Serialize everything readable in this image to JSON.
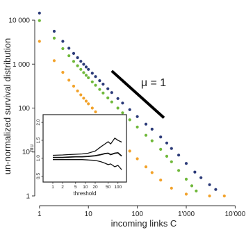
{
  "chart_data": [
    {
      "type": "scatter",
      "scale": "log-log",
      "xlabel": "incoming links C",
      "ylabel": "un-normalized survival distribution",
      "xlim": [
        0.8,
        12000
      ],
      "ylim": [
        0.6,
        20000
      ],
      "x_tick_labels": [
        "1",
        "10",
        "100",
        "1'000",
        "10'000"
      ],
      "x_ticks": [
        1,
        10,
        100,
        1000,
        10000
      ],
      "y_tick_labels": [
        "1",
        "10",
        "100",
        "1 000",
        "10 000"
      ],
      "y_ticks": [
        1,
        10,
        100,
        1000,
        10000
      ],
      "grid": false,
      "series": [
        {
          "color": "#2b3a78",
          "points": [
            [
              1,
              14500
            ],
            [
              2,
              5600
            ],
            [
              3,
              3300
            ],
            [
              4,
              2300
            ],
            [
              5,
              1750
            ],
            [
              6,
              1400
            ],
            [
              7,
              1160
            ],
            [
              8,
              990
            ],
            [
              9,
              860
            ],
            [
              10,
              760
            ],
            [
              12,
              620
            ],
            [
              14,
              520
            ],
            [
              17,
              420
            ],
            [
              20,
              350
            ],
            [
              25,
              275
            ],
            [
              30,
              225
            ],
            [
              40,
              165
            ],
            [
              50,
              130
            ],
            [
              70,
              92
            ],
            [
              100,
              64
            ],
            [
              150,
              43
            ],
            [
              200,
              33
            ],
            [
              300,
              22
            ],
            [
              400,
              16
            ],
            [
              500,
              12
            ],
            [
              700,
              8.5
            ],
            [
              1000,
              5.5
            ],
            [
              1500,
              3.5
            ],
            [
              2000,
              2.6
            ],
            [
              3000,
              1.8
            ],
            [
              4000,
              1.4
            ]
          ]
        },
        {
          "color": "#6fb83a",
          "points": [
            [
              1,
              9800
            ],
            [
              2,
              3900
            ],
            [
              3,
              2250
            ],
            [
              4,
              1550
            ],
            [
              5,
              1150
            ],
            [
              6,
              920
            ],
            [
              7,
              760
            ],
            [
              8,
              640
            ],
            [
              9,
              555
            ],
            [
              10,
              490
            ],
            [
              12,
              395
            ],
            [
              14,
              330
            ],
            [
              17,
              265
            ],
            [
              20,
              220
            ],
            [
              25,
              170
            ],
            [
              30,
              138
            ],
            [
              40,
              100
            ],
            [
              50,
              78
            ],
            [
              70,
              54
            ],
            [
              100,
              37
            ],
            [
              150,
              24
            ],
            [
              200,
              18
            ],
            [
              300,
              11.5
            ],
            [
              400,
              8
            ],
            [
              500,
              6
            ],
            [
              700,
              3.8
            ],
            [
              1000,
              2.4
            ],
            [
              1300,
              1.7
            ],
            [
              1600,
              1.3
            ]
          ]
        },
        {
          "color": "#f2a22a",
          "points": [
            [
              1,
              3300
            ],
            [
              2,
              1200
            ],
            [
              3,
              650
            ],
            [
              4,
              430
            ],
            [
              5,
              315
            ],
            [
              6,
              245
            ],
            [
              7,
              200
            ],
            [
              8,
              168
            ],
            [
              9,
              144
            ],
            [
              10,
              125
            ],
            [
              12,
              100
            ],
            [
              14,
              82
            ],
            [
              17,
              64
            ],
            [
              20,
              52
            ],
            [
              25,
              39
            ],
            [
              30,
              31
            ],
            [
              40,
              21
            ],
            [
              50,
              16
            ],
            [
              70,
              10.5
            ],
            [
              100,
              7
            ],
            [
              150,
              4.6
            ],
            [
              200,
              3.4
            ],
            [
              300,
              2.3
            ],
            [
              500,
              1.5
            ],
            [
              1000,
              1.1
            ],
            [
              3000,
              1.0
            ],
            [
              6000,
              1.0
            ]
          ]
        }
      ],
      "reference_line": {
        "label": "μ = 1",
        "slope": -1,
        "x": [
          30,
          350
        ],
        "y": [
          700,
          60
        ]
      }
    },
    {
      "type": "line",
      "scale": "log-x",
      "xlabel": "threshold",
      "ylabel": "mu",
      "x_tick_labels": [
        "1",
        "2",
        "5",
        "10",
        "20",
        "50",
        "100"
      ],
      "x_ticks": [
        1,
        2,
        5,
        10,
        20,
        50,
        100
      ],
      "y_tick_labels": [
        "0.5",
        "1.0",
        "1.5",
        "2.0"
      ],
      "y_ticks": [
        0.5,
        1.0,
        1.5,
        2.0
      ],
      "xlim": [
        1,
        150
      ],
      "ylim": [
        0.45,
        2.1
      ],
      "series": [
        {
          "points": [
            [
              1,
              1.02
            ],
            [
              2,
              1.02
            ],
            [
              3,
              1.03
            ],
            [
              5,
              1.04
            ],
            [
              8,
              1.04
            ],
            [
              12,
              1.05
            ],
            [
              20,
              1.07
            ],
            [
              30,
              1.1
            ],
            [
              40,
              1.13
            ],
            [
              50,
              1.14
            ],
            [
              60,
              1.1
            ],
            [
              80,
              1.14
            ],
            [
              100,
              1.15
            ],
            [
              130,
              1.06
            ]
          ]
        },
        {
          "points": [
            [
              1,
              1.08
            ],
            [
              2,
              1.09
            ],
            [
              3,
              1.1
            ],
            [
              5,
              1.11
            ],
            [
              8,
              1.12
            ],
            [
              12,
              1.14
            ],
            [
              20,
              1.2
            ],
            [
              30,
              1.32
            ],
            [
              40,
              1.4
            ],
            [
              50,
              1.46
            ],
            [
              60,
              1.4
            ],
            [
              80,
              1.56
            ],
            [
              100,
              1.5
            ],
            [
              130,
              1.45
            ]
          ]
        },
        {
          "points": [
            [
              1,
              0.96
            ],
            [
              2,
              0.96
            ],
            [
              3,
              0.96
            ],
            [
              5,
              0.96
            ],
            [
              8,
              0.96
            ],
            [
              12,
              0.95
            ],
            [
              20,
              0.94
            ],
            [
              30,
              0.9
            ],
            [
              40,
              0.86
            ],
            [
              50,
              0.82
            ],
            [
              60,
              0.84
            ],
            [
              80,
              0.76
            ],
            [
              100,
              0.8
            ],
            [
              130,
              0.68
            ]
          ]
        }
      ]
    }
  ]
}
